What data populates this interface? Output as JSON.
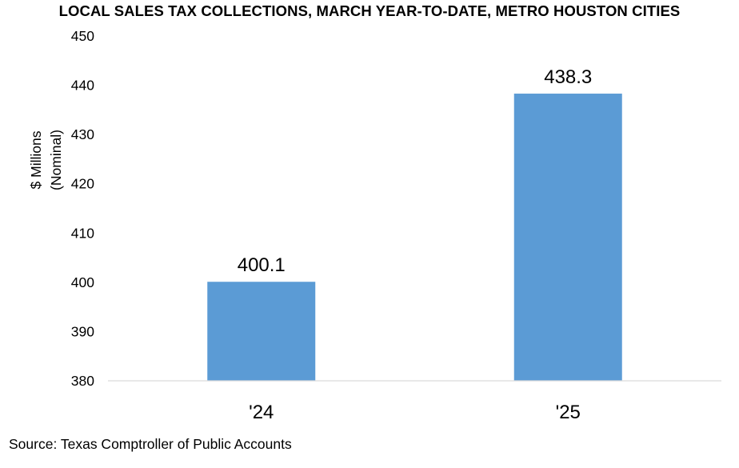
{
  "chart_data": {
    "type": "bar",
    "title": "LOCAL SALES TAX COLLECTIONS, MARCH YEAR-TO-DATE, METRO HOUSTON CITIES",
    "categories": [
      "'24",
      "'25"
    ],
    "values": [
      400.1,
      438.3
    ],
    "data_labels": [
      "400.1",
      "438.3"
    ],
    "ylabel_lines": [
      "$ Millions",
      "(Nominal)"
    ],
    "xlabel": "",
    "ylim": [
      380,
      450
    ],
    "yticks": [
      380,
      390,
      400,
      410,
      420,
      430,
      440,
      450
    ],
    "grid": false,
    "legend": "none",
    "bar_color": "#5B9BD5"
  },
  "source": "Source: Texas Comptroller of Public Accounts"
}
